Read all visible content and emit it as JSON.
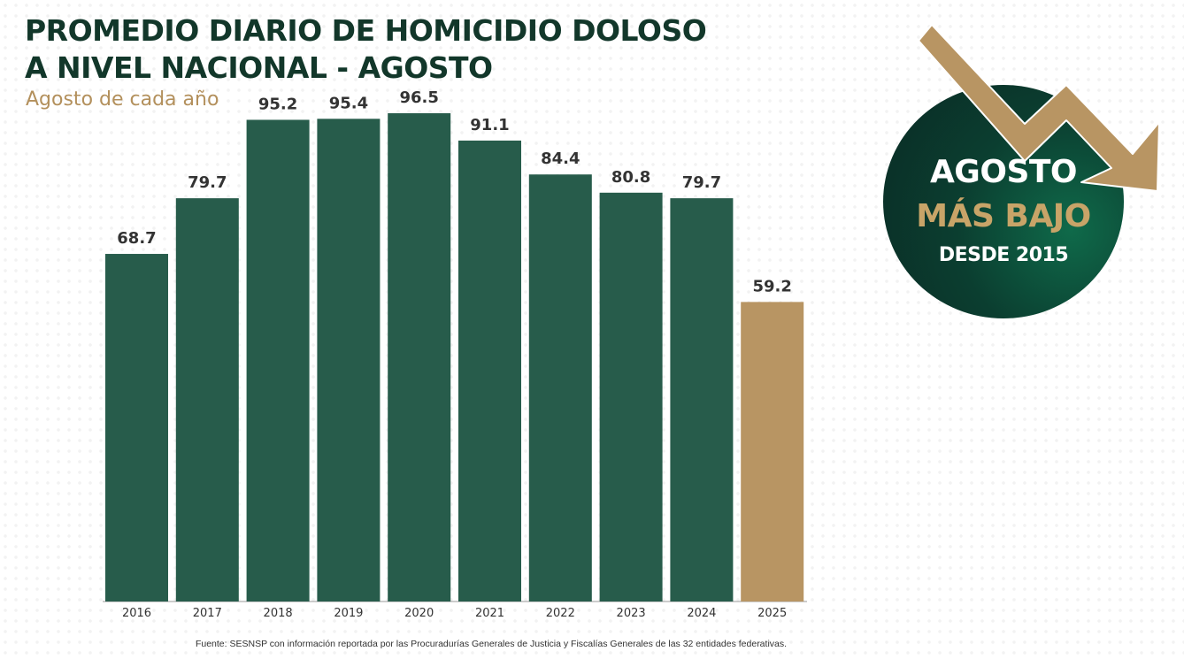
{
  "header": {
    "title_line1": "PROMEDIO DIARIO DE HOMICIDIO DOLOSO",
    "title_line2": "A NIVEL NACIONAL - AGOSTO",
    "subtitle": "Agosto de cada año"
  },
  "badge": {
    "line1": "AGOSTO",
    "line2": "MÁS BAJO",
    "line3": "DESDE 2015"
  },
  "source": "Fuente: SESNSP con información reportada por las Procuradurías Generales de Justicia y Fiscalías Generales de las 32 entidades federativas.",
  "colors": {
    "bar": "#275c4b",
    "highlight": "#b89563",
    "title": "#12372a",
    "accent": "#b3905c"
  },
  "chart_data": {
    "type": "bar",
    "title": "PROMEDIO DIARIO DE HOMICIDIO DOLOSO A NIVEL NACIONAL - AGOSTO",
    "subtitle": "Agosto de cada año",
    "categories": [
      "2016",
      "2017",
      "2018",
      "2019",
      "2020",
      "2021",
      "2022",
      "2023",
      "2024",
      "2025"
    ],
    "values": [
      68.7,
      79.7,
      95.2,
      95.4,
      96.5,
      91.1,
      84.4,
      80.8,
      79.7,
      59.2
    ],
    "value_labels": [
      "68.7",
      "79.7",
      "95.2",
      "95.4",
      "96.5",
      "91.1",
      "84.4",
      "80.8",
      "79.7",
      "59.2"
    ],
    "highlight_category": "2025",
    "xlabel": "",
    "ylabel": "",
    "ylim": [
      0,
      100
    ],
    "grid": false,
    "legend": "none"
  }
}
